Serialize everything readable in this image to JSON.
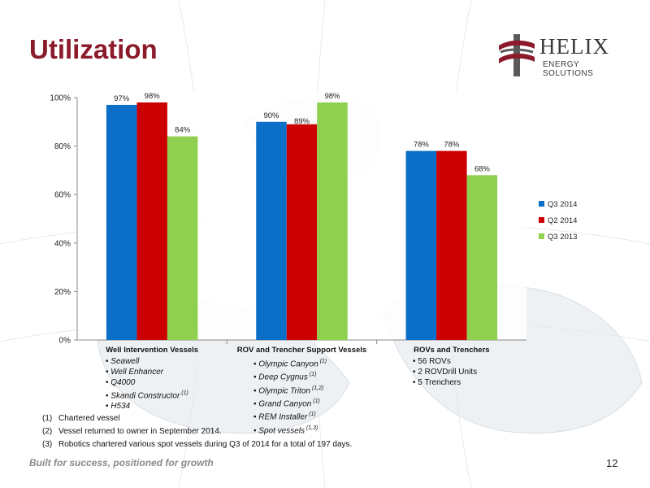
{
  "slide": {
    "title": "Utilization",
    "logo_name": "HELIX",
    "logo_sub": "ENERGY SOLUTIONS",
    "tagline": "Built for success, positioned for growth",
    "page_number": "12"
  },
  "chart_data": {
    "type": "bar",
    "categories": [
      "Well Intervention Vessels",
      "ROV and Trencher Support Vessels",
      "ROVs and Trenchers"
    ],
    "series": [
      {
        "name": "Q3 2014",
        "color": "#0b6fc8",
        "values": [
          97,
          90,
          78
        ],
        "labels": [
          "97%",
          "90%",
          "78%"
        ]
      },
      {
        "name": "Q2 2014",
        "color": "#cc0000",
        "values": [
          98,
          89,
          78
        ],
        "labels": [
          "98%",
          "89%",
          "78%"
        ]
      },
      {
        "name": "Q3 2013",
        "color": "#8fd14f",
        "values": [
          84,
          98,
          68
        ],
        "labels": [
          "84%",
          "98%",
          "68%"
        ]
      }
    ],
    "ylim": [
      0,
      100
    ],
    "yticks": [
      0,
      20,
      40,
      60,
      80,
      100
    ],
    "ytick_labels": [
      "0%",
      "20%",
      "40%",
      "60%",
      "80%",
      "100%"
    ],
    "legend_position": "right",
    "grid": false
  },
  "groups": [
    {
      "items": [
        {
          "text": "Seawell",
          "italic": true,
          "sup": ""
        },
        {
          "text": "Well Enhancer",
          "italic": true,
          "sup": ""
        },
        {
          "text": "Q4000",
          "italic": true,
          "sup": ""
        },
        {
          "text": "Skandi Constructor",
          "italic": true,
          "sup": "(1)"
        },
        {
          "text": "H534",
          "italic": true,
          "sup": ""
        }
      ]
    },
    {
      "items": [
        {
          "text": "Olympic Canyon",
          "italic": true,
          "sup": "(1)"
        },
        {
          "text": "Deep Cygnus",
          "italic": true,
          "sup": "(1)"
        },
        {
          "text": "Olympic Triton",
          "italic": true,
          "sup": "(1,2)"
        },
        {
          "text": "Grand Canyon",
          "italic": true,
          "sup": "(1)"
        },
        {
          "text": "REM Installer",
          "italic": true,
          "sup": "(1)"
        },
        {
          "text": "Spot vessels",
          "italic": true,
          "sup": "(1,3)"
        }
      ]
    },
    {
      "items": [
        {
          "text": "56 ROVs",
          "italic": false,
          "sup": ""
        },
        {
          "text": "2 ROVDrill Units",
          "italic": false,
          "sup": ""
        },
        {
          "text": "5 Trenchers",
          "italic": false,
          "sup": ""
        }
      ]
    }
  ],
  "footnotes": [
    {
      "num": "(1)",
      "text": "Chartered vessel"
    },
    {
      "num": "(2)",
      "text": "Vessel returned to owner in September 2014."
    },
    {
      "num": "(3)",
      "text": "Robotics chartered various spot vessels during Q3 of 2014 for a total of 197 days."
    }
  ]
}
